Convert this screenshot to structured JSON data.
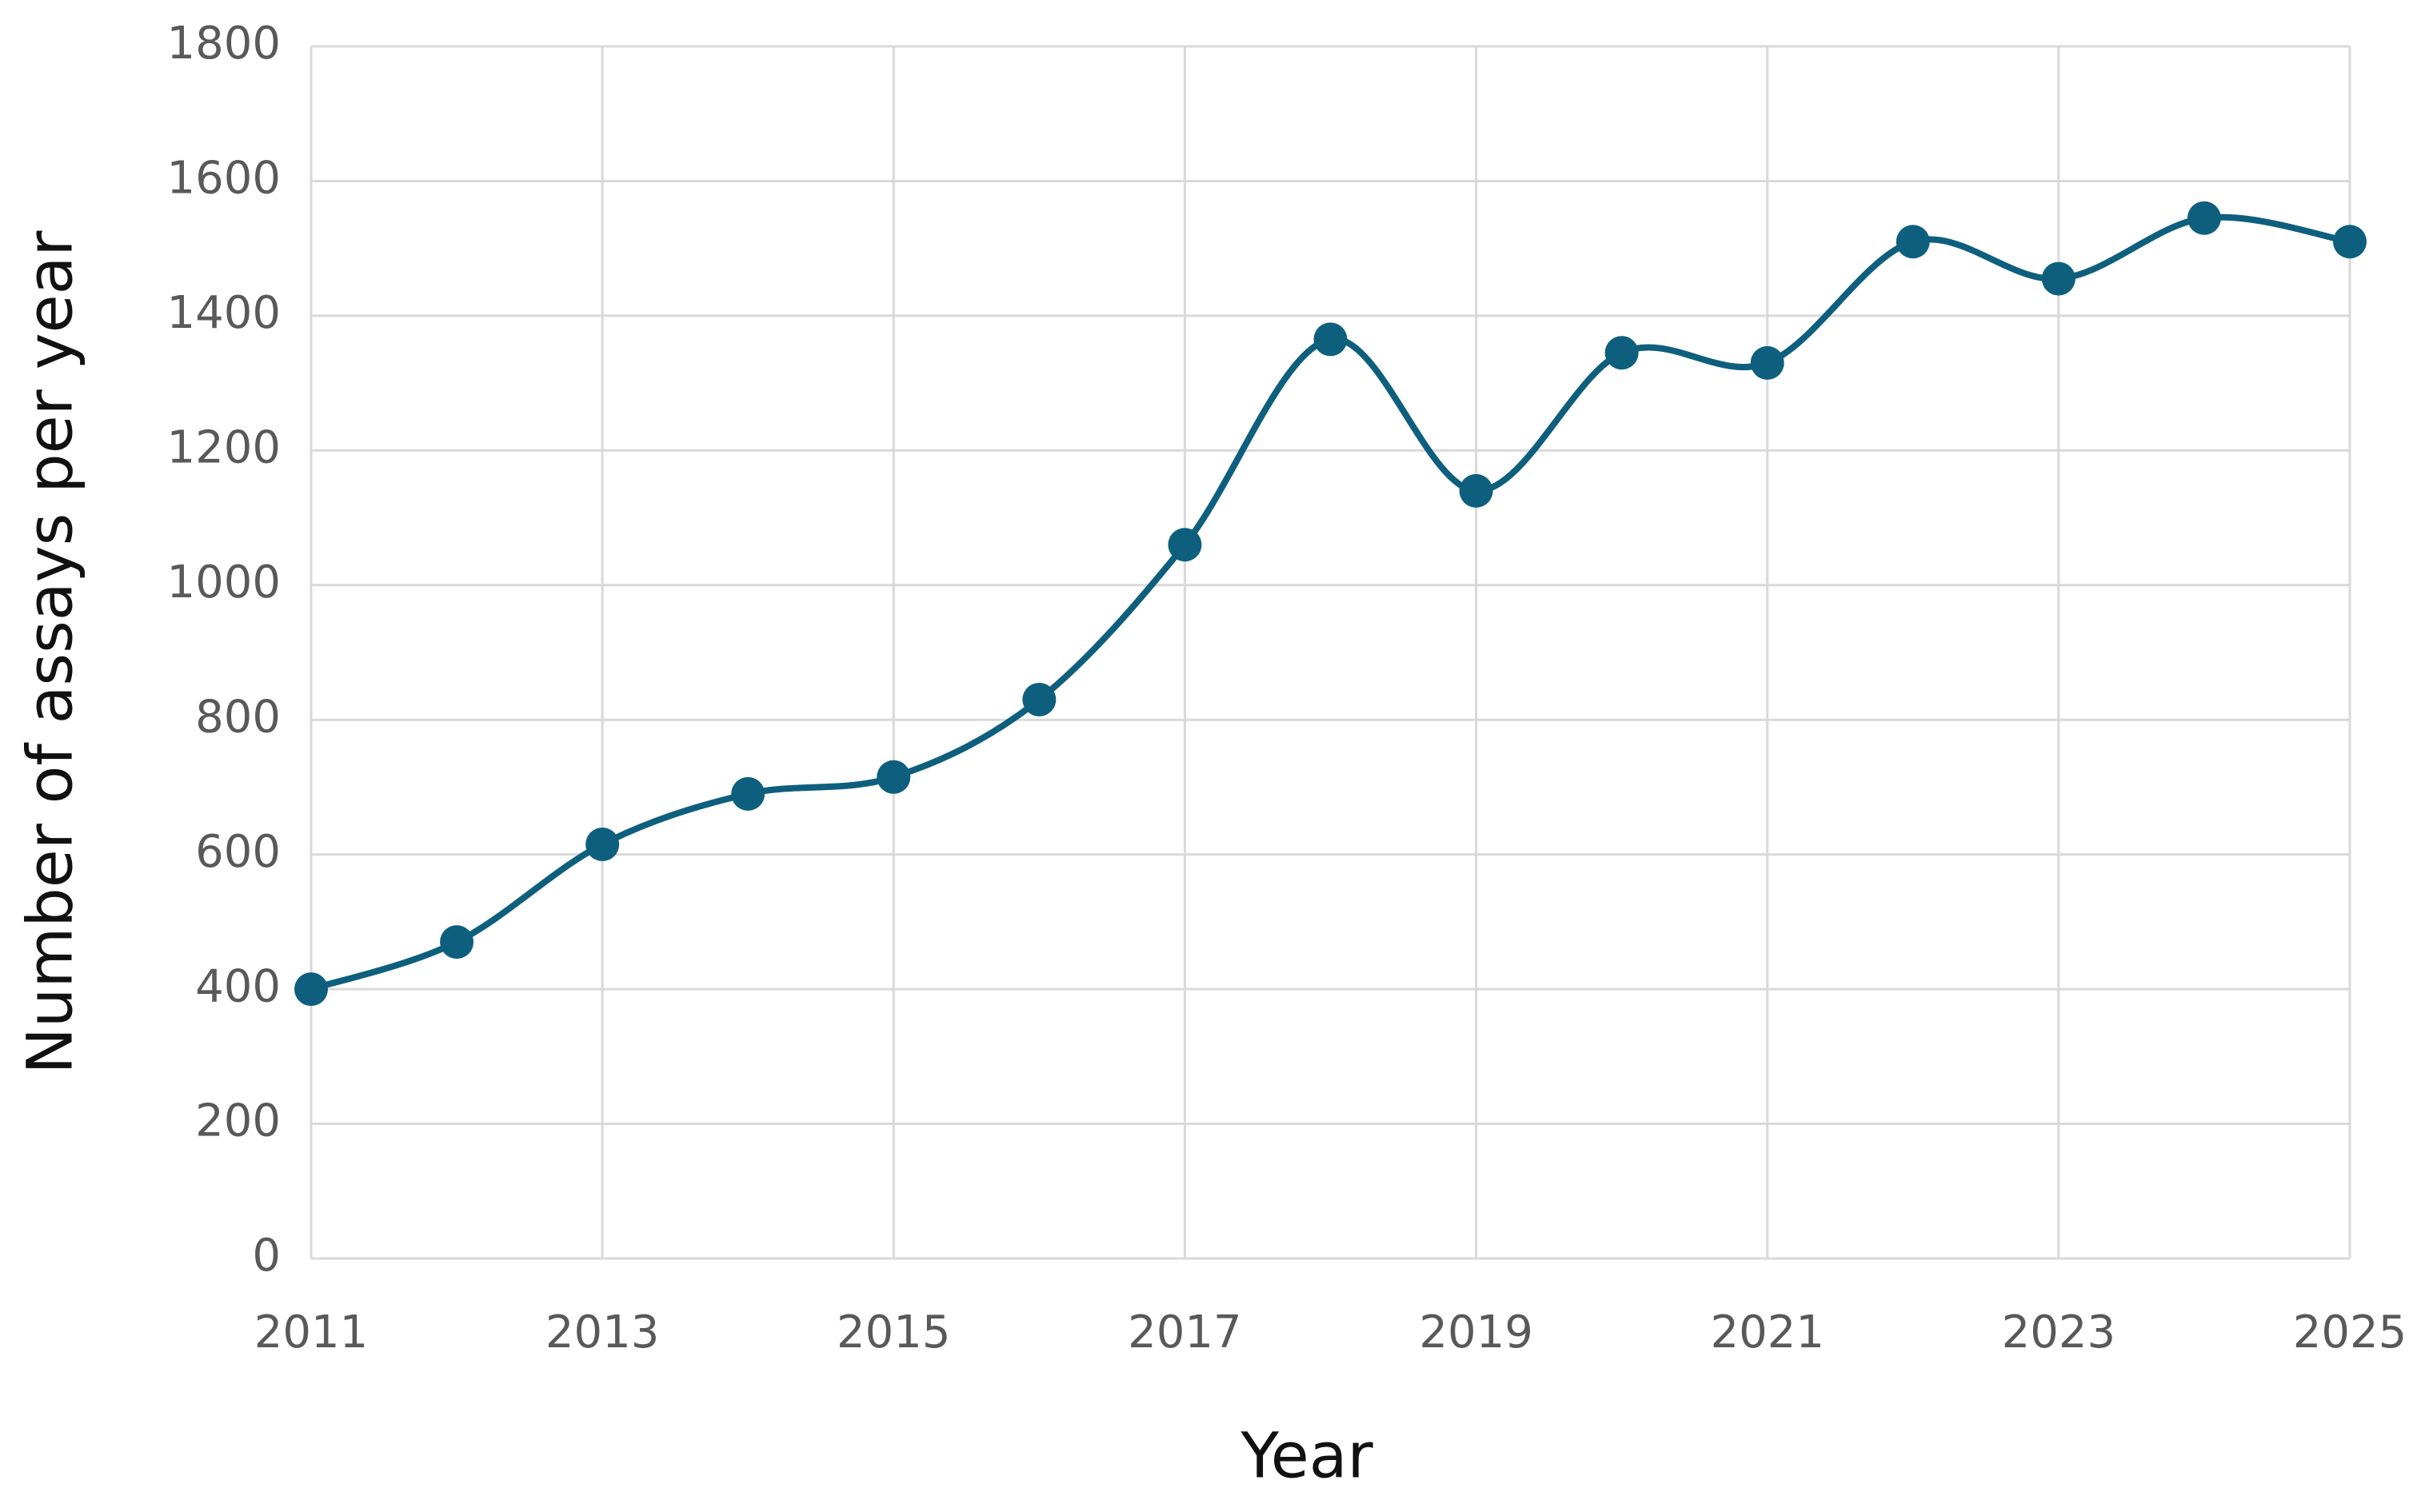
{
  "chart_data": {
    "type": "line",
    "x_label": "Year",
    "y_label": "Number of assays per year",
    "x": [
      2011,
      2012,
      2013,
      2014,
      2015,
      2016,
      2017,
      2018,
      2019,
      2020,
      2021,
      2022,
      2023,
      2024,
      2025
    ],
    "series": [
      {
        "color": "#0e5f7e",
        "values": [
          400,
          470,
          615,
          690,
          715,
          830,
          1060,
          1365,
          1140,
          1345,
          1330,
          1510,
          1455,
          1545,
          1510
        ]
      }
    ],
    "smooth": true,
    "xlim": [
      2011,
      2025
    ],
    "xticks": [
      2011,
      2013,
      2015,
      2017,
      2019,
      2021,
      2023,
      2025
    ],
    "ylim": [
      0,
      1800
    ],
    "yticks": [
      0,
      200,
      400,
      600,
      800,
      1000,
      1200,
      1400,
      1600,
      1800
    ],
    "grid": true
  }
}
